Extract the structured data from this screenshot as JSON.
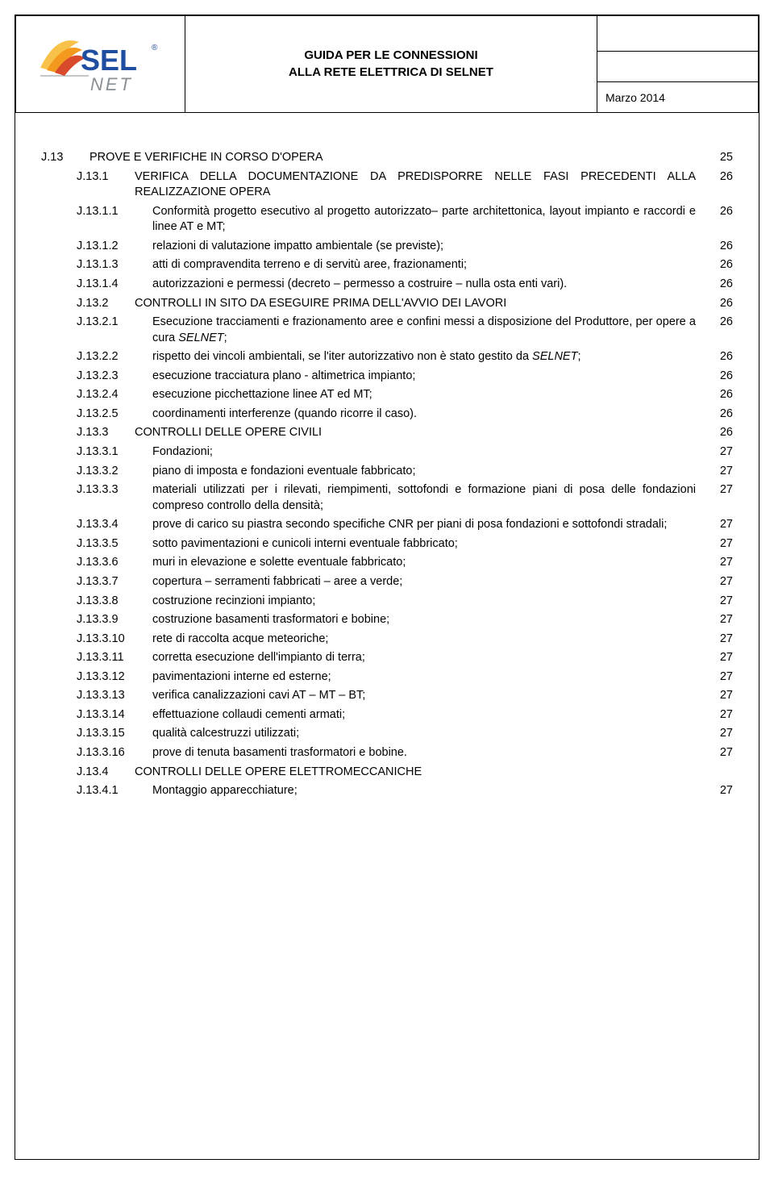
{
  "header": {
    "title_line1": "GUIDA PER LE CONNESSIONI",
    "title_line2": "ALLA RETE ELETTRICA DI SELNET",
    "date": "Marzo 2014",
    "logo": {
      "text_main": "SEL",
      "text_sub": "NET",
      "reg_mark": "®",
      "colors": {
        "orange": "#f39a1e",
        "red": "#d84a2b",
        "blue": "#1f4ea1",
        "grey": "#8a8f94"
      }
    }
  },
  "toc": [
    {
      "lvl": 0,
      "num": "J.13",
      "txt": "PROVE E VERIFICHE IN CORSO D'OPERA",
      "pg": "25",
      "gap": true
    },
    {
      "lvl": 1,
      "num": "J.13.1",
      "txt": "VERIFICA DELLA DOCUMENTAZIONE DA PREDISPORRE NELLE FASI PRECEDENTI ALLA REALIZZAZIONE OPERA",
      "pg": "26"
    },
    {
      "lvl": 2,
      "num": "J.13.1.1",
      "txt": "Conformità progetto esecutivo al progetto autorizzato– parte architettonica, layout impianto e raccordi e linee AT e MT;",
      "pg": "26"
    },
    {
      "lvl": 2,
      "num": "J.13.1.2",
      "txt": "relazioni di valutazione impatto ambientale (se previste);",
      "pg": "26"
    },
    {
      "lvl": 2,
      "num": "J.13.1.3",
      "txt": "atti di compravendita terreno e di servitù aree, frazionamenti;",
      "pg": "26"
    },
    {
      "lvl": 2,
      "num": "J.13.1.4",
      "txt": "autorizzazioni e permessi (decreto – permesso a costruire – nulla osta enti vari).",
      "pg": "26"
    },
    {
      "lvl": 1,
      "num": "J.13.2",
      "txt": "CONTROLLI IN SITO DA ESEGUIRE PRIMA DELL'AVVIO DEI LAVORI",
      "pg": "26"
    },
    {
      "lvl": 2,
      "num": "J.13.2.1",
      "txt_html": "Esecuzione tracciamenti e frazionamento aree e confini messi a disposizione del Produttore, per opere a cura <i>SELNET</i>;",
      "pg": "26"
    },
    {
      "lvl": 2,
      "num": "J.13.2.2",
      "txt_html": "rispetto dei vincoli ambientali, se l'iter autorizzativo non è stato gestito da <i>SELNET</i>;",
      "pg": "26"
    },
    {
      "lvl": 2,
      "num": "J.13.2.3",
      "txt": "esecuzione tracciatura plano - altimetrica impianto;",
      "pg": "26"
    },
    {
      "lvl": 2,
      "num": "J.13.2.4",
      "txt": "esecuzione picchettazione linee AT ed MT;",
      "pg": "26"
    },
    {
      "lvl": 2,
      "num": "J.13.2.5",
      "txt": "coordinamenti interferenze (quando ricorre il caso).",
      "pg": "26"
    },
    {
      "lvl": 1,
      "num": "J.13.3",
      "txt": "CONTROLLI DELLE OPERE CIVILI",
      "pg": "26"
    },
    {
      "lvl": 2,
      "num": "J.13.3.1",
      "txt": "Fondazioni;",
      "pg": "27"
    },
    {
      "lvl": 2,
      "num": "J.13.3.2",
      "txt": "piano di imposta e fondazioni eventuale fabbricato;",
      "pg": "27"
    },
    {
      "lvl": 2,
      "num": "J.13.3.3",
      "txt": "materiali utilizzati per i rilevati, riempimenti, sottofondi e formazione piani di posa delle fondazioni compreso controllo della densità;",
      "pg": "27"
    },
    {
      "lvl": 2,
      "num": "J.13.3.4",
      "txt": "prove di carico su piastra secondo specifiche CNR per piani di posa fondazioni e sottofondi stradali;",
      "pg": "27"
    },
    {
      "lvl": 2,
      "num": "J.13.3.5",
      "txt": "sotto pavimentazioni e cunicoli interni eventuale fabbricato;",
      "pg": "27"
    },
    {
      "lvl": 2,
      "num": "J.13.3.6",
      "txt": "muri in elevazione e solette eventuale fabbricato;",
      "pg": "27"
    },
    {
      "lvl": 2,
      "num": "J.13.3.7",
      "txt": "copertura – serramenti  fabbricati – aree a verde;",
      "pg": "27"
    },
    {
      "lvl": 2,
      "num": "J.13.3.8",
      "txt": "costruzione recinzioni impianto;",
      "pg": "27"
    },
    {
      "lvl": 2,
      "num": "J.13.3.9",
      "txt": "costruzione basamenti trasformatori e bobine;",
      "pg": "27"
    },
    {
      "lvl": 2,
      "num": "J.13.3.10",
      "txt": "rete di raccolta acque meteoriche;",
      "pg": "27"
    },
    {
      "lvl": 2,
      "num": "J.13.3.11",
      "txt": "corretta esecuzione dell'impianto di terra;",
      "pg": "27"
    },
    {
      "lvl": 2,
      "num": "J.13.3.12",
      "txt": "pavimentazioni interne ed esterne;",
      "pg": "27"
    },
    {
      "lvl": 2,
      "num": "J.13.3.13",
      "txt": "verifica canalizzazioni cavi AT – MT – BT;",
      "pg": "27"
    },
    {
      "lvl": 2,
      "num": "J.13.3.14",
      "txt": "effettuazione collaudi cementi armati;",
      "pg": "27"
    },
    {
      "lvl": 2,
      "num": "J.13.3.15",
      "txt": "qualità calcestruzzi utilizzati;",
      "pg": "27"
    },
    {
      "lvl": 2,
      "num": "J.13.3.16",
      "txt": "prove di tenuta basamenti trasformatori e bobine.",
      "pg": "27"
    },
    {
      "lvl": 1,
      "num": "J.13.4",
      "txt": "CONTROLLI DELLE OPERE ELETTROMECCANICHE",
      "pg": ""
    },
    {
      "lvl": 2,
      "num": "J.13.4.1",
      "txt": "Montaggio apparecchiature;",
      "pg": "27"
    }
  ]
}
